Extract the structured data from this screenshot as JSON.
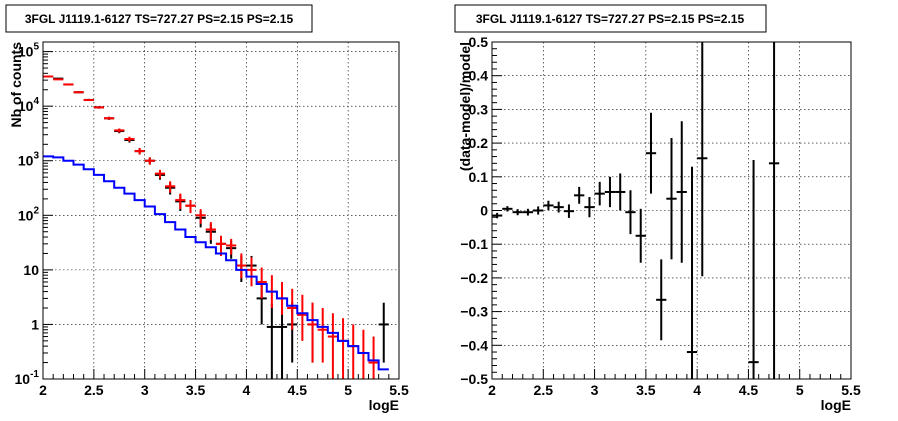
{
  "chart_data": [
    {
      "type": "line",
      "title": "3FGL J1119.1-6127 TS=727.27 PS=2.15 PS=2.15",
      "xlabel": "logE",
      "ylabel": "Nb of counts",
      "xlim": [
        2,
        5.5
      ],
      "ylim": [
        0.1,
        150000
      ],
      "y_scale": "log",
      "grid": true,
      "x_ticks": [
        "2",
        "2.5",
        "3",
        "3.5",
        "4",
        "4.5",
        "5",
        "5.5"
      ],
      "y_ticks": [
        {
          "value": 0.1,
          "label": "10",
          "exp": "-1"
        },
        {
          "value": 1,
          "label": "1",
          "exp": ""
        },
        {
          "value": 10,
          "label": "10",
          "exp": ""
        },
        {
          "value": 100,
          "label": "10",
          "exp": "2"
        },
        {
          "value": 1000,
          "label": "10",
          "exp": "3"
        },
        {
          "value": 10000,
          "label": "10",
          "exp": "4"
        },
        {
          "value": 100000,
          "label": "10",
          "exp": "5"
        }
      ],
      "bin_edges": [
        2.0,
        2.1,
        2.2,
        2.3,
        2.4,
        2.5,
        2.6,
        2.7,
        2.8,
        2.9,
        3.0,
        3.1,
        3.2,
        3.3,
        3.4,
        3.5,
        3.6,
        3.7,
        3.8,
        3.9,
        4.0,
        4.1,
        4.2,
        4.3,
        4.4,
        4.5,
        4.6,
        4.7,
        4.8,
        4.9,
        5.0,
        5.1,
        5.2,
        5.3,
        5.4
      ],
      "series": [
        {
          "name": "",
          "style": "points",
          "color": "#000000",
          "x": [
            2.05,
            2.15,
            2.25,
            2.35,
            2.45,
            2.55,
            2.65,
            2.75,
            2.85,
            2.95,
            3.05,
            3.15,
            3.25,
            3.35,
            3.45,
            3.55,
            3.65,
            3.75,
            3.85,
            3.95,
            4.05,
            4.15,
            4.25,
            4.35,
            4.45,
            4.65,
            5.35
          ],
          "y": [
            35000,
            32000,
            25000,
            18000,
            13000,
            9500,
            6000,
            3500,
            2400,
            1500,
            1000,
            550,
            320,
            180,
            150,
            90,
            50,
            30,
            25,
            12,
            12,
            3,
            0.9,
            0.9,
            1,
            1,
            1
          ],
          "err_low": [
            1000,
            1000,
            800,
            700,
            600,
            500,
            400,
            300,
            250,
            200,
            150,
            100,
            80,
            60,
            40,
            30,
            20,
            12,
            9,
            6,
            6,
            2,
            0.8,
            0.8,
            0.8,
            0.8,
            0.8
          ],
          "err_high": [
            1000,
            1000,
            800,
            700,
            600,
            500,
            400,
            300,
            250,
            200,
            150,
            100,
            80,
            60,
            40,
            30,
            20,
            12,
            9,
            6,
            6,
            3,
            1.5,
            1.5,
            1.5,
            1.5,
            1.5
          ]
        },
        {
          "name": "",
          "style": "points",
          "color": "#ff0000",
          "x": [
            2.05,
            2.15,
            2.25,
            2.35,
            2.45,
            2.55,
            2.65,
            2.75,
            2.85,
            2.95,
            3.05,
            3.15,
            3.25,
            3.35,
            3.45,
            3.55,
            3.65,
            3.75,
            3.85,
            3.95,
            4.05,
            4.15,
            4.25,
            4.35,
            4.45,
            4.55,
            4.65,
            4.75,
            4.85,
            4.95,
            5.05,
            5.15,
            5.25
          ],
          "y": [
            35000,
            31000,
            25000,
            18000,
            13000,
            9500,
            6000,
            3600,
            2500,
            1500,
            1000,
            580,
            340,
            190,
            150,
            100,
            55,
            30,
            28,
            12,
            10,
            6,
            4,
            3,
            2,
            1.5,
            1,
            0.8,
            0.6,
            0.5,
            0.4,
            0.3,
            0.2
          ],
          "err_low": [
            900,
            900,
            700,
            600,
            500,
            450,
            350,
            300,
            250,
            200,
            150,
            100,
            80,
            60,
            40,
            30,
            20,
            12,
            9,
            5,
            5,
            3,
            2,
            1.5,
            1.2,
            1,
            0.8,
            0.6,
            0.5,
            0.45,
            0.35,
            0.28,
            0.19
          ],
          "err_high": [
            900,
            900,
            700,
            600,
            500,
            450,
            350,
            300,
            250,
            200,
            150,
            100,
            80,
            60,
            40,
            30,
            20,
            12,
            9,
            8,
            7,
            5,
            4,
            3,
            2.5,
            2,
            1.5,
            1.2,
            1,
            0.8,
            0.6,
            0.5,
            0.4
          ]
        },
        {
          "name": "",
          "style": "step",
          "color": "#0000ff",
          "values": [
            1200,
            1150,
            1000,
            850,
            700,
            550,
            420,
            320,
            250,
            190,
            145,
            105,
            75,
            55,
            40,
            32,
            26,
            20,
            15,
            10,
            7.5,
            5.5,
            4,
            3,
            2.2,
            1.6,
            1.2,
            0.9,
            0.7,
            0.5,
            0.4,
            0.3,
            0.22,
            0.15
          ]
        }
      ]
    },
    {
      "type": "scatter",
      "title": "3FGL J1119.1-6127 TS=727.27 PS=2.15 PS=2.15",
      "xlabel": "logE",
      "ylabel": "(data-model)/model",
      "xlim": [
        2,
        5.5
      ],
      "ylim": [
        -0.5,
        0.5
      ],
      "grid": true,
      "x_ticks": [
        "2",
        "2.5",
        "3",
        "3.5",
        "4",
        "4.5",
        "5",
        "5.5"
      ],
      "y_ticks": [
        "−0.5",
        "−0.4",
        "−0.3",
        "−0.2",
        "−0.1",
        "0",
        "0.1",
        "0.2",
        "0.3",
        "0.4",
        "0.5"
      ],
      "series": [
        {
          "name": "",
          "color": "#000000",
          "x": [
            2.05,
            2.15,
            2.25,
            2.35,
            2.45,
            2.55,
            2.65,
            2.75,
            2.85,
            2.95,
            3.05,
            3.15,
            3.25,
            3.35,
            3.45,
            3.55,
            3.65,
            3.75,
            3.85,
            3.95,
            4.05,
            4.55,
            4.75
          ],
          "y": [
            -0.015,
            0.005,
            -0.005,
            -0.005,
            0.0,
            0.015,
            0.01,
            -0.002,
            0.045,
            0.01,
            0.05,
            0.055,
            0.055,
            -0.005,
            -0.075,
            0.17,
            -0.265,
            0.035,
            0.055,
            -0.42,
            0.155,
            -0.45,
            0.14
          ],
          "err": [
            0.008,
            0.008,
            0.009,
            0.01,
            0.012,
            0.014,
            0.016,
            0.02,
            0.025,
            0.03,
            0.035,
            0.045,
            0.055,
            0.065,
            0.08,
            0.12,
            0.12,
            0.18,
            0.21,
            0.55,
            0.35,
            0.6,
            0.7
          ]
        }
      ]
    }
  ]
}
